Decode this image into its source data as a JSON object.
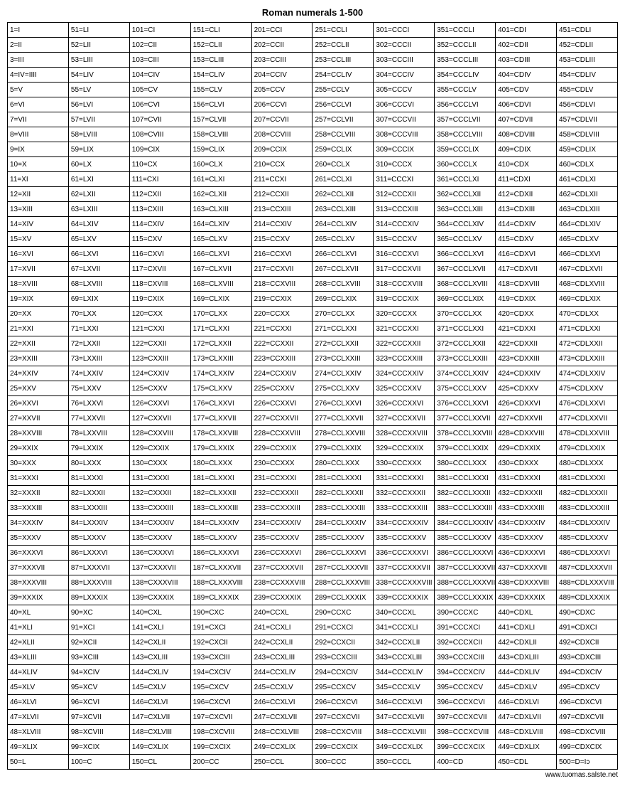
{
  "title": "Roman numerals 1-500",
  "footer": "www.tuomas.salste.net",
  "columns": 10,
  "rows": 50,
  "count": 500
}
